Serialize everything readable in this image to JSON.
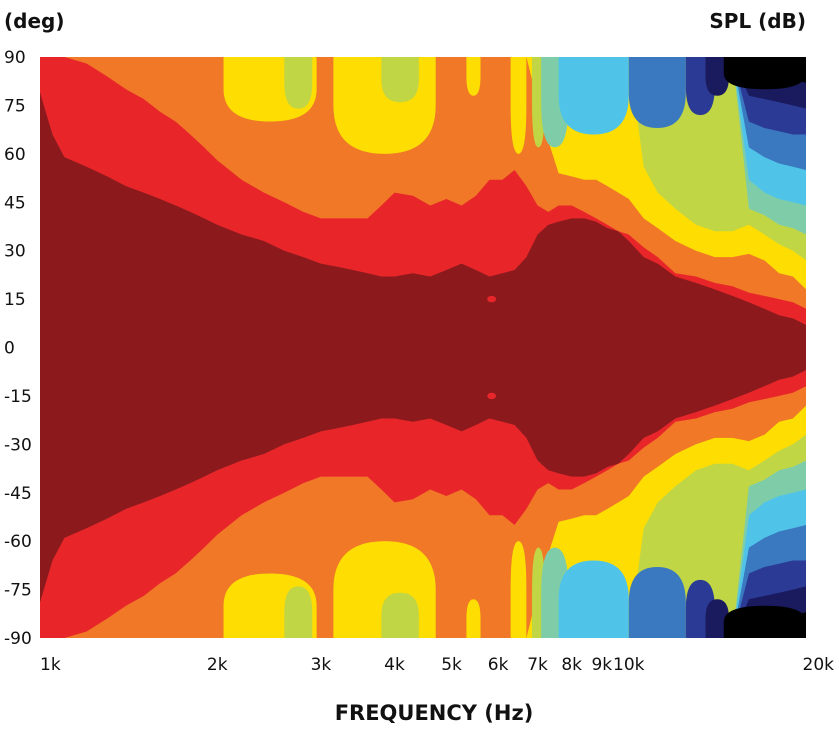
{
  "chart_data": {
    "type": "heatmap",
    "title": "",
    "xlabel": "FREQUENCY (Hz)",
    "y_unit_label": "(deg)",
    "colorbar_label": "SPL (dB)",
    "x_scale": "log",
    "xlim": [
      1000,
      20000
    ],
    "ylim": [
      -90,
      90
    ],
    "x_ticks": [
      {
        "value": 1000,
        "label": "1k"
      },
      {
        "value": 2000,
        "label": "2k"
      },
      {
        "value": 3000,
        "label": "3k"
      },
      {
        "value": 4000,
        "label": "4k"
      },
      {
        "value": 5000,
        "label": "5k"
      },
      {
        "value": 6000,
        "label": "6k"
      },
      {
        "value": 7000,
        "label": "7k"
      },
      {
        "value": 8000,
        "label": "8k"
      },
      {
        "value": 9000,
        "label": "9k"
      },
      {
        "value": 10000,
        "label": "10k"
      },
      {
        "value": 20000,
        "label": "20k"
      }
    ],
    "y_ticks": [
      {
        "value": 90,
        "label": "90"
      },
      {
        "value": 75,
        "label": "75"
      },
      {
        "value": 60,
        "label": "60"
      },
      {
        "value": 45,
        "label": "45"
      },
      {
        "value": 30,
        "label": "30"
      },
      {
        "value": 15,
        "label": "15"
      },
      {
        "value": 0,
        "label": "0"
      },
      {
        "value": -15,
        "label": "-15"
      },
      {
        "value": -30,
        "label": "-30"
      },
      {
        "value": -45,
        "label": "-45"
      },
      {
        "value": -60,
        "label": "-60"
      },
      {
        "value": -75,
        "label": "-75"
      },
      {
        "value": -90,
        "label": "-90"
      }
    ],
    "levels": [
      {
        "band": 0,
        "color": "#8c1a1d"
      },
      {
        "band": 1,
        "color": "#e8262a"
      },
      {
        "band": 2,
        "color": "#f07827"
      },
      {
        "band": 3,
        "color": "#fedd03"
      },
      {
        "band": 4,
        "color": "#c1d644"
      },
      {
        "band": 5,
        "color": "#7fcda8"
      },
      {
        "band": 6,
        "color": "#50c4e8"
      },
      {
        "band": 7,
        "color": "#3a78bf"
      },
      {
        "band": 8,
        "color": "#2b3a94"
      },
      {
        "band": 9,
        "color": "#1a1a5e"
      },
      {
        "band": 10,
        "color": "#000000"
      }
    ],
    "angle_contours": {
      "description": "Symmetric about 0 deg. For each frequency, the angle (deg) at which the SPL drops into band k+1 (band 0 = highest level near on-axis).",
      "frequencies": [
        1000,
        1050,
        1100,
        1200,
        1300,
        1400,
        1500,
        1600,
        1700,
        1800,
        1900,
        2000,
        2200,
        2400,
        2600,
        2800,
        3000,
        3200,
        3400,
        3600,
        3800,
        4000,
        4300,
        4600,
        4900,
        5200,
        5500,
        5800,
        6100,
        6400,
        6700,
        7000,
        7300,
        7600,
        8000,
        8400,
        8800,
        9200,
        9600,
        10000,
        10600,
        11200,
        12000,
        13000,
        14000,
        15000,
        16000,
        17000,
        18000,
        19000,
        20000
      ],
      "bounds": [
        [
          79,
          66,
          59,
          56,
          53,
          50,
          48,
          46,
          44,
          42,
          40,
          38,
          35,
          33,
          30,
          28,
          26,
          25,
          24,
          23,
          22,
          22,
          23,
          22,
          24,
          26,
          24,
          22,
          23,
          24,
          28,
          35,
          38,
          39,
          40,
          40,
          39,
          37,
          36,
          33,
          28,
          26,
          22,
          20,
          18,
          16,
          14,
          12,
          10,
          9,
          7
        ],
        [
          90,
          90,
          90,
          88,
          84,
          80,
          77,
          73,
          70,
          66,
          62,
          58,
          52,
          48,
          45,
          42,
          40,
          40,
          40,
          40,
          44,
          48,
          47,
          44,
          46,
          44,
          47,
          52,
          52,
          55,
          50,
          44,
          42,
          44,
          44,
          42,
          40,
          38,
          36,
          35,
          31,
          28,
          23,
          22,
          20,
          19,
          17,
          16,
          15,
          14,
          12
        ],
        [
          90,
          90,
          90,
          90,
          90,
          90,
          90,
          90,
          90,
          90,
          90,
          90,
          90,
          90,
          90,
          90,
          90,
          90,
          90,
          90,
          90,
          90,
          90,
          90,
          90,
          90,
          90,
          90,
          90,
          90,
          90,
          76,
          64,
          54,
          53,
          52,
          52,
          50,
          48,
          46,
          40,
          37,
          33,
          30,
          28,
          28,
          29,
          27,
          23,
          22,
          18
        ],
        [
          90,
          90,
          90,
          90,
          90,
          90,
          90,
          90,
          90,
          90,
          90,
          90,
          90,
          90,
          90,
          90,
          90,
          90,
          90,
          90,
          90,
          90,
          90,
          90,
          90,
          90,
          90,
          90,
          90,
          90,
          90,
          90,
          90,
          90,
          90,
          90,
          90,
          90,
          90,
          90,
          56,
          48,
          43,
          38,
          36,
          36,
          38,
          35,
          32,
          30,
          27
        ],
        [
          90,
          90,
          90,
          90,
          90,
          90,
          90,
          90,
          90,
          90,
          90,
          90,
          90,
          90,
          90,
          90,
          90,
          90,
          90,
          90,
          90,
          90,
          90,
          90,
          90,
          90,
          90,
          90,
          90,
          90,
          90,
          90,
          90,
          90,
          90,
          90,
          90,
          90,
          90,
          90,
          90,
          90,
          90,
          90,
          90,
          90,
          43,
          41,
          38,
          37,
          35
        ],
        [
          90,
          90,
          90,
          90,
          90,
          90,
          90,
          90,
          90,
          90,
          90,
          90,
          90,
          90,
          90,
          90,
          90,
          90,
          90,
          90,
          90,
          90,
          90,
          90,
          90,
          90,
          90,
          90,
          90,
          90,
          90,
          90,
          90,
          90,
          90,
          90,
          90,
          90,
          90,
          90,
          90,
          90,
          90,
          90,
          90,
          90,
          52,
          48,
          46,
          45,
          44
        ],
        [
          90,
          90,
          90,
          90,
          90,
          90,
          90,
          90,
          90,
          90,
          90,
          90,
          90,
          90,
          90,
          90,
          90,
          90,
          90,
          90,
          90,
          90,
          90,
          90,
          90,
          90,
          90,
          90,
          90,
          90,
          90,
          90,
          90,
          90,
          90,
          90,
          90,
          90,
          90,
          90,
          90,
          90,
          90,
          90,
          90,
          90,
          62,
          59,
          57,
          56,
          55
        ],
        [
          90,
          90,
          90,
          90,
          90,
          90,
          90,
          90,
          90,
          90,
          90,
          90,
          90,
          90,
          90,
          90,
          90,
          90,
          90,
          90,
          90,
          90,
          90,
          90,
          90,
          90,
          90,
          90,
          90,
          90,
          90,
          90,
          90,
          90,
          90,
          90,
          90,
          90,
          90,
          90,
          90,
          90,
          90,
          90,
          90,
          90,
          70,
          68,
          67,
          66,
          66
        ],
        [
          90,
          90,
          90,
          90,
          90,
          90,
          90,
          90,
          90,
          90,
          90,
          90,
          90,
          90,
          90,
          90,
          90,
          90,
          90,
          90,
          90,
          90,
          90,
          90,
          90,
          90,
          90,
          90,
          90,
          90,
          90,
          90,
          90,
          90,
          90,
          90,
          90,
          90,
          90,
          90,
          90,
          90,
          90,
          90,
          90,
          90,
          78,
          77,
          76,
          75,
          74
        ],
        [
          90,
          90,
          90,
          90,
          90,
          90,
          90,
          90,
          90,
          90,
          90,
          90,
          90,
          90,
          90,
          90,
          90,
          90,
          90,
          90,
          90,
          90,
          90,
          90,
          90,
          90,
          90,
          90,
          90,
          90,
          90,
          90,
          90,
          90,
          90,
          90,
          90,
          90,
          90,
          90,
          90,
          90,
          90,
          90,
          90,
          90,
          86,
          85,
          84,
          83,
          82
        ]
      ]
    },
    "islands": [
      {
        "band": 2,
        "freq_range": [
          1580,
          2000
        ],
        "angle_range": [
          83,
          90
        ]
      },
      {
        "band": 3,
        "freq_range": [
          2050,
          2950
        ],
        "angle_range": [
          70,
          90
        ]
      },
      {
        "band": 4,
        "freq_range": [
          2600,
          2900
        ],
        "angle_range": [
          74,
          90
        ]
      },
      {
        "band": 3,
        "freq_range": [
          3150,
          4700
        ],
        "angle_range": [
          60,
          90
        ]
      },
      {
        "band": 4,
        "freq_range": [
          3800,
          4400
        ],
        "angle_range": [
          76,
          90
        ]
      },
      {
        "band": 2,
        "freq_range": [
          4800,
          5500
        ],
        "angle_range": [
          70,
          90
        ]
      },
      {
        "band": 3,
        "freq_range": [
          5300,
          5600
        ],
        "angle_range": [
          78,
          90
        ]
      },
      {
        "band": 3,
        "freq_range": [
          6300,
          6700
        ],
        "angle_range": [
          60,
          90
        ]
      },
      {
        "band": 4,
        "freq_range": [
          6850,
          7200
        ],
        "angle_range": [
          62,
          90
        ]
      },
      {
        "band": 5,
        "freq_range": [
          7100,
          7900
        ],
        "angle_range": [
          62,
          90
        ]
      },
      {
        "band": 6,
        "freq_range": [
          7600,
          10000
        ],
        "angle_range": [
          66,
          90
        ]
      },
      {
        "band": 7,
        "freq_range": [
          10000,
          12500
        ],
        "angle_range": [
          68,
          90
        ]
      },
      {
        "band": 8,
        "freq_range": [
          12500,
          14000
        ],
        "angle_range": [
          72,
          90
        ]
      },
      {
        "band": 9,
        "freq_range": [
          13500,
          14800
        ],
        "angle_range": [
          78,
          90
        ]
      },
      {
        "band": 10,
        "freq_range": [
          14500,
          20000
        ],
        "angle_range": [
          80,
          90
        ]
      },
      {
        "band": 1,
        "freq_range": [
          5750,
          5950
        ],
        "angle_range": [
          14,
          16
        ]
      }
    ]
  }
}
